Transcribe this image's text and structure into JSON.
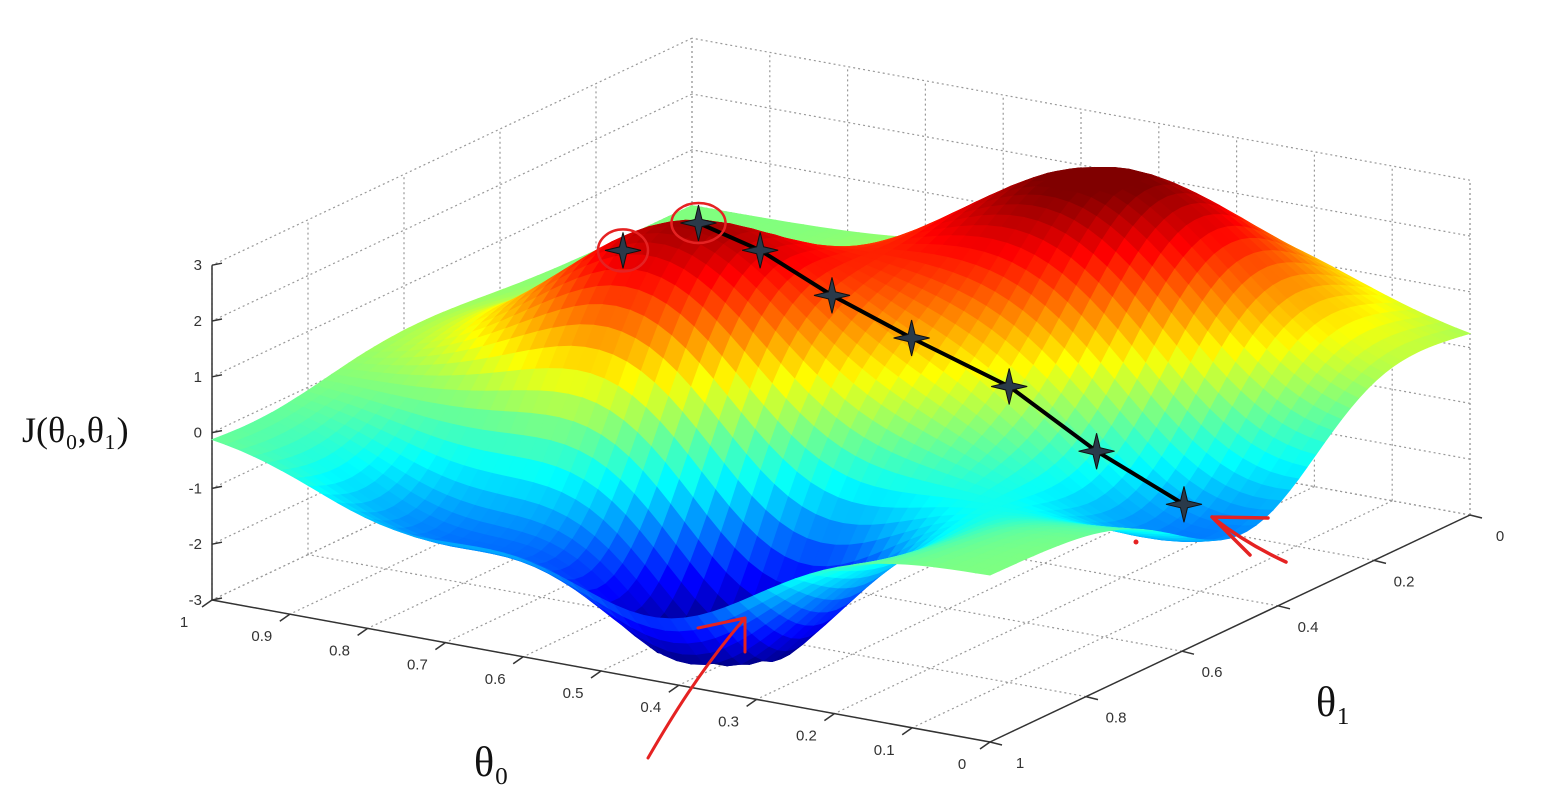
{
  "chart_data": {
    "type": "surface",
    "title": "",
    "xlabel": "θ₀",
    "ylabel": "θ₁",
    "zlabel": "J(θ₀,θ₁)",
    "xlim": [
      0,
      1
    ],
    "ylim": [
      0,
      1
    ],
    "zlim": [
      -3,
      3
    ],
    "x_ticks": [
      "0",
      "0.1",
      "0.2",
      "0.3",
      "0.4",
      "0.5",
      "0.6",
      "0.7",
      "0.8",
      "0.9",
      "1"
    ],
    "x_tick_values": [
      0,
      0.1,
      0.2,
      0.3,
      0.4,
      0.5,
      0.6,
      0.7,
      0.8,
      0.9,
      1
    ],
    "y_ticks": [
      "0",
      "0.2",
      "0.4",
      "0.6",
      "0.8",
      "1"
    ],
    "y_tick_values": [
      0,
      0.2,
      0.4,
      0.6,
      0.8,
      1
    ],
    "z_ticks": [
      "-3",
      "-2",
      "-1",
      "0",
      "1",
      "2",
      "3"
    ],
    "z_tick_values": [
      -3,
      -2,
      -1,
      0,
      1,
      2,
      3
    ],
    "grid": true,
    "colormap": "jet",
    "surface_features": [
      {
        "kind": "peak",
        "theta0": 0.66,
        "theta1": 0.58,
        "height": 2.8,
        "width": 0.15
      },
      {
        "kind": "peak",
        "theta0": 0.33,
        "theta1": 0.23,
        "height": 3.3,
        "width": 0.18
      },
      {
        "kind": "valley",
        "theta0": 0.43,
        "theta1": 0.85,
        "height": -3.6,
        "width": 0.13
      },
      {
        "kind": "valley",
        "theta0": 0.09,
        "theta1": 0.45,
        "height": -2.0,
        "width": 0.15
      },
      {
        "kind": "valley",
        "theta0": 0.75,
        "theta1": 0.9,
        "height": -1.6,
        "width": 0.12
      }
    ],
    "descent_path": {
      "theta0": [
        0.64,
        0.57,
        0.49,
        0.4,
        0.29,
        0.19,
        0.09
      ],
      "theta1": [
        0.57,
        0.555,
        0.535,
        0.515,
        0.49,
        0.47,
        0.45
      ]
    },
    "alternate_start": {
      "theta0": 0.7,
      "theta1": 0.63
    },
    "annotation_color": "#e52222",
    "path_color": "#000000"
  }
}
